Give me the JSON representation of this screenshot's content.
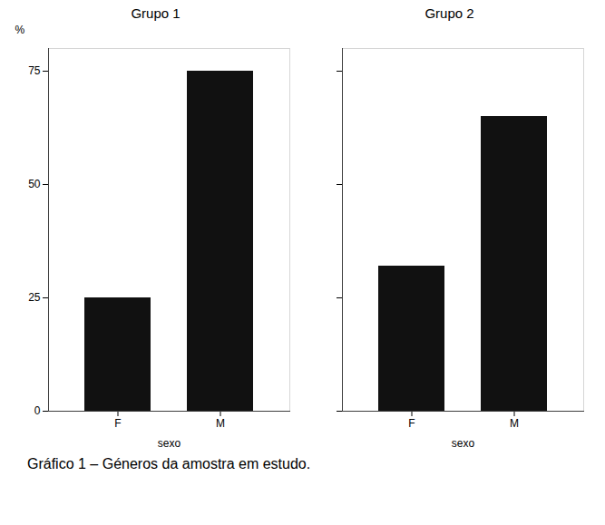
{
  "chart_data": [
    {
      "type": "bar",
      "title": "Grupo 1",
      "categories": [
        "F",
        "M"
      ],
      "values": [
        25,
        75
      ],
      "color": "#111111",
      "xlabel": "sexo",
      "ylabel": "%",
      "ylim": [
        0,
        80
      ],
      "yticks": [
        0,
        25,
        50,
        75
      ],
      "caption": "Gráfico 1 – Géneros da amostra em estudo."
    },
    {
      "type": "bar",
      "title": "Grupo 2",
      "categories": [
        "F",
        "M"
      ],
      "values": [
        32,
        65
      ],
      "color": "#111111",
      "xlabel": "sexo",
      "ylim": [
        0,
        80
      ],
      "yticks": [
        0,
        25,
        50,
        75
      ],
      "tick_labels": "x"
    }
  ]
}
